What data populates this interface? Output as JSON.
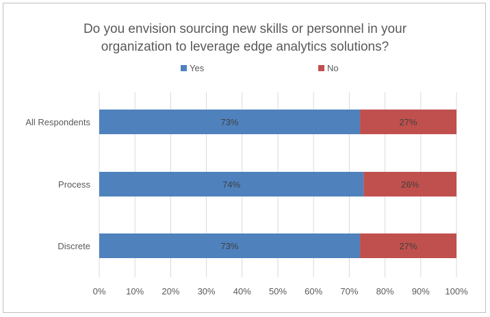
{
  "chart_data": {
    "type": "bar",
    "orientation": "horizontal",
    "stacked": true,
    "title_line1": "Do you envision sourcing new skills or personnel in your",
    "title_line2": "organization to leverage edge analytics solutions?",
    "categories": [
      "All Respondents",
      "Process",
      "Discrete"
    ],
    "series": [
      {
        "name": "Yes",
        "values": [
          73,
          74,
          73
        ],
        "labels": [
          "73%",
          "74%",
          "73%"
        ],
        "color": "#4f81bd"
      },
      {
        "name": "No",
        "values": [
          27,
          26,
          27
        ],
        "labels": [
          "27%",
          "26%",
          "27%"
        ],
        "color": "#c0504d"
      }
    ],
    "xlim": [
      0,
      100
    ],
    "x_ticks": [
      "0%",
      "10%",
      "20%",
      "30%",
      "40%",
      "50%",
      "60%",
      "70%",
      "80%",
      "90%",
      "100%"
    ],
    "grid": true,
    "legend": "top"
  }
}
